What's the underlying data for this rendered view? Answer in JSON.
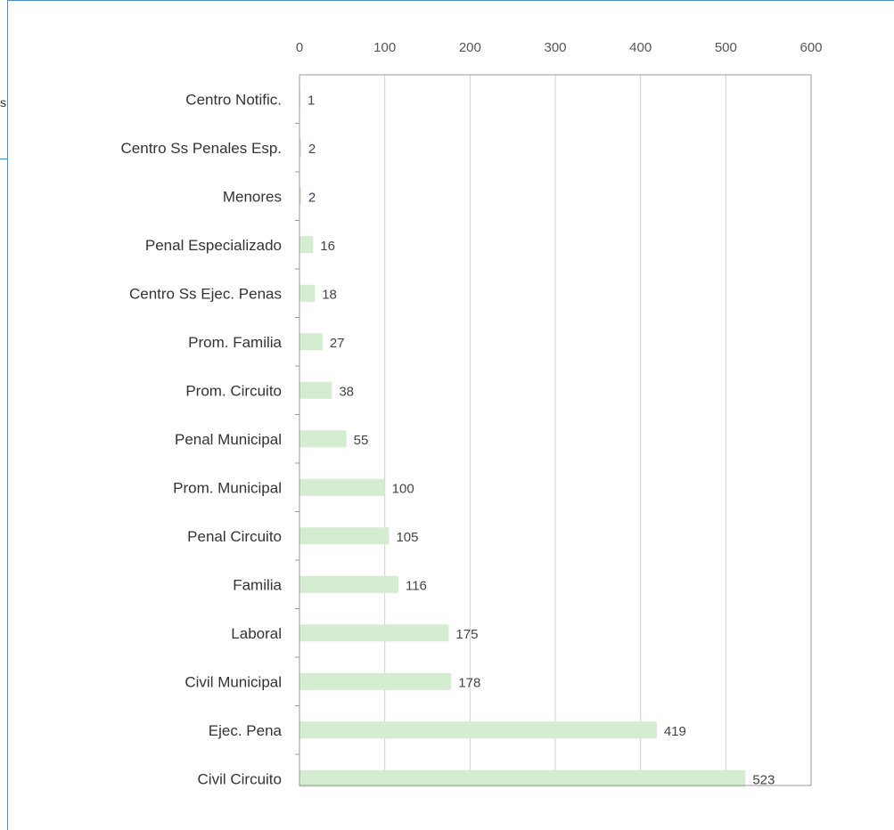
{
  "frame": {
    "stub_char": "s"
  },
  "chart_data": {
    "type": "bar",
    "orientation": "horizontal",
    "title": "",
    "xlabel": "",
    "ylabel": "",
    "categories": [
      "Centro Notific.",
      "Centro Ss Penales Esp.",
      "Menores",
      "Penal Especializado",
      "Centro Ss Ejec. Penas",
      "Prom. Familia",
      "Prom. Circuito",
      "Penal Municipal",
      "Prom. Municipal",
      "Penal Circuito",
      "Familia",
      "Laboral",
      "Civil Municipal",
      "Ejec. Pena",
      "Civil Circuito"
    ],
    "values": [
      1,
      2,
      2,
      16,
      18,
      27,
      38,
      55,
      100,
      105,
      116,
      175,
      178,
      419,
      523
    ],
    "xlim": [
      0,
      600
    ],
    "xticks": [
      "0",
      "100",
      "200",
      "300",
      "400",
      "500",
      "600"
    ],
    "axis_position": "top",
    "grid": true,
    "bar_color": "#d4ecd0",
    "grid_color": "#d0d0d0"
  }
}
